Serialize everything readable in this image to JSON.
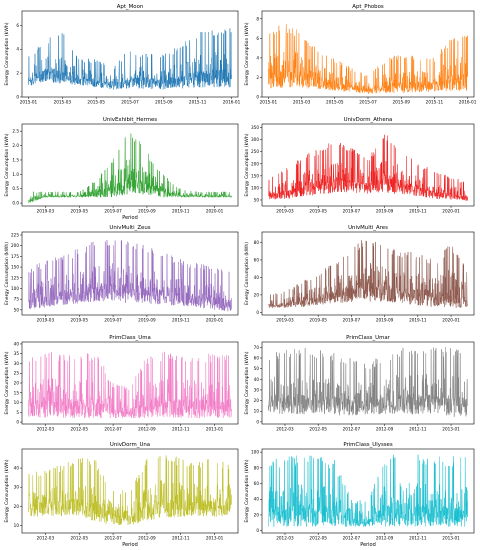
{
  "chart_data": [
    {
      "type": "line",
      "title": "Apt_Moon",
      "xlabel": "",
      "ylabel": "Energy Consumption (kWh)",
      "xtick_labels": [
        "2015-01",
        "2015-03",
        "2015-05",
        "2015-07",
        "2015-09",
        "2015-11",
        "2016-01"
      ],
      "ytick_labels": [
        "0",
        "2",
        "4",
        "6"
      ],
      "ylim": [
        0,
        7.2
      ],
      "color": "#1f77b4",
      "series": [
        {
          "x": [
            "2015-01",
            "2015-02",
            "2015-03",
            "2015-04",
            "2015-05",
            "2015-06",
            "2015-07",
            "2015-08",
            "2015-09",
            "2015-10",
            "2015-11",
            "2015-12",
            "2016-01"
          ],
          "low": [
            0.9,
            1.3,
            1.1,
            1.0,
            0.8,
            0.6,
            0.7,
            0.7,
            0.6,
            0.7,
            0.8,
            0.8,
            0.8
          ],
          "high": [
            3.5,
            4.8,
            5.6,
            3.2,
            3.2,
            2.5,
            4.2,
            3.6,
            3.6,
            4.4,
            5.4,
            5.8,
            5.8
          ]
        }
      ]
    },
    {
      "type": "line",
      "title": "Apt_Phobos",
      "xlabel": "",
      "ylabel": "Energy Consumption (kWh)",
      "xtick_labels": [
        "2015-01",
        "2015-03",
        "2015-05",
        "2015-07",
        "2015-09",
        "2015-11",
        "2016-01"
      ],
      "ytick_labels": [
        "0",
        "2",
        "4",
        "6",
        "8"
      ],
      "ylim": [
        0,
        8.8
      ],
      "color": "#ff7f0e",
      "series": [
        {
          "x": [
            "2015-01",
            "2015-02",
            "2015-03",
            "2015-04",
            "2015-05",
            "2015-06",
            "2015-07",
            "2015-08",
            "2015-09",
            "2015-10",
            "2015-11",
            "2015-12",
            "2016-01"
          ],
          "low": [
            0.8,
            0.9,
            0.9,
            0.8,
            0.6,
            0.5,
            0.3,
            0.4,
            0.4,
            0.5,
            0.5,
            0.6,
            0.6
          ],
          "high": [
            7.0,
            7.6,
            6.8,
            5.0,
            4.0,
            3.0,
            2.2,
            3.8,
            4.5,
            4.2,
            4.0,
            6.2,
            6.5
          ]
        }
      ]
    },
    {
      "type": "line",
      "title": "UnivExhibit_Hermes",
      "xlabel": "Period",
      "ylabel": "Energy Consumption (kWh)",
      "xtick_labels": [
        "2019-03",
        "2019-05",
        "2019-07",
        "2019-09",
        "2019-11",
        "2020-01"
      ],
      "ytick_labels": [
        "0.0",
        "0.5",
        "1.0",
        "1.5",
        "2.0",
        "2.5"
      ],
      "ylim": [
        -0.1,
        2.75
      ],
      "color": "#2ca02c",
      "series": [
        {
          "x": [
            "2019-02",
            "2019-03",
            "2019-04",
            "2019-05",
            "2019-06",
            "2019-07",
            "2019-08",
            "2019-09",
            "2019-10",
            "2019-11",
            "2019-12",
            "2020-01",
            "2020-02"
          ],
          "low": [
            0.0,
            0.2,
            0.2,
            0.2,
            0.2,
            0.2,
            0.3,
            0.3,
            0.2,
            0.2,
            0.2,
            0.2,
            0.2
          ],
          "high": [
            0.4,
            0.4,
            0.4,
            0.4,
            0.8,
            1.6,
            2.6,
            1.8,
            1.0,
            0.5,
            0.4,
            0.4,
            0.4
          ]
        }
      ]
    },
    {
      "type": "line",
      "title": "UnivDorm_Athena",
      "xlabel": "",
      "ylabel": "Energy Consumption (kWh)",
      "xtick_labels": [
        "2019-03",
        "2019-05",
        "2019-07",
        "2019-09",
        "2019-11",
        "2020-01"
      ],
      "ytick_labels": [
        "50",
        "100",
        "150",
        "200",
        "250",
        "300",
        "350"
      ],
      "ylim": [
        25,
        365
      ],
      "color": "#ee1c1c",
      "series": [
        {
          "x": [
            "2019-02",
            "2019-03",
            "2019-04",
            "2019-05",
            "2019-06",
            "2019-07",
            "2019-08",
            "2019-09",
            "2019-10",
            "2019-11",
            "2019-12",
            "2020-01",
            "2020-02"
          ],
          "low": [
            50,
            55,
            60,
            70,
            80,
            80,
            75,
            80,
            70,
            65,
            55,
            50,
            45
          ],
          "high": [
            140,
            180,
            230,
            260,
            300,
            270,
            220,
            340,
            280,
            210,
            170,
            150,
            120
          ]
        }
      ]
    },
    {
      "type": "line",
      "title": "UnivMulti_Zeus",
      "xlabel": "",
      "ylabel": "Energy Consumption (kWh)",
      "xtick_labels": [
        "2019-03",
        "2019-05",
        "2019-07",
        "2019-09",
        "2019-11",
        "2020-01"
      ],
      "ytick_labels": [
        "50",
        "75",
        "100",
        "125",
        "150",
        "175",
        "200",
        "225"
      ],
      "ylim": [
        38,
        232
      ],
      "color": "#9467bd",
      "series": [
        {
          "x": [
            "2019-02",
            "2019-03",
            "2019-04",
            "2019-05",
            "2019-06",
            "2019-07",
            "2019-08",
            "2019-09",
            "2019-10",
            "2019-11",
            "2019-12",
            "2020-01",
            "2020-02"
          ],
          "low": [
            50,
            55,
            60,
            65,
            70,
            70,
            65,
            65,
            60,
            60,
            55,
            50,
            45
          ],
          "high": [
            150,
            165,
            180,
            195,
            215,
            220,
            210,
            200,
            185,
            170,
            160,
            150,
            140
          ]
        }
      ]
    },
    {
      "type": "line",
      "title": "UnivMulti_Ares",
      "xlabel": "",
      "ylabel": "Energy Consumption (kWh)",
      "xtick_labels": [
        "2019-03",
        "2019-05",
        "2019-07",
        "2019-09",
        "2019-11",
        "2020-01"
      ],
      "ytick_labels": [
        "0",
        "20",
        "40",
        "60",
        "80"
      ],
      "ylim": [
        -3,
        92
      ],
      "color": "#8c564b",
      "series": [
        {
          "x": [
            "2019-02",
            "2019-03",
            "2019-04",
            "2019-05",
            "2019-06",
            "2019-07",
            "2019-08",
            "2019-09",
            "2019-10",
            "2019-11",
            "2019-12",
            "2020-01",
            "2020-02"
          ],
          "low": [
            5,
            5,
            6,
            8,
            10,
            12,
            12,
            12,
            10,
            8,
            6,
            5,
            4
          ],
          "high": [
            20,
            25,
            35,
            45,
            60,
            75,
            88,
            80,
            70,
            70,
            60,
            80,
            50
          ]
        }
      ]
    },
    {
      "type": "line",
      "title": "PrimClass_Uma",
      "xlabel": "",
      "ylabel": "Energy Consumption (kWh)",
      "xtick_labels": [
        "2012-03",
        "2012-05",
        "2012-07",
        "2012-09",
        "2012-11",
        "2013-01"
      ],
      "ytick_labels": [
        "0",
        "5",
        "10",
        "15",
        "20",
        "25",
        "30",
        "35",
        "40"
      ],
      "ylim": [
        -1,
        41
      ],
      "color": "#f27ac6",
      "series": [
        {
          "x": [
            "2012-02",
            "2012-03",
            "2012-04",
            "2012-05",
            "2012-06",
            "2012-07",
            "2012-08",
            "2012-09",
            "2012-10",
            "2012-11",
            "2012-12",
            "2013-01",
            "2013-02"
          ],
          "low": [
            2,
            2,
            2,
            2,
            2,
            2,
            2,
            2,
            2,
            2,
            2,
            2,
            2
          ],
          "high": [
            35,
            36,
            36,
            35,
            36,
            20,
            18,
            34,
            36,
            36,
            36,
            35,
            35
          ]
        }
      ]
    },
    {
      "type": "line",
      "title": "PrimClass_Umar",
      "xlabel": "",
      "ylabel": "Energy Consumption (kWh)",
      "xtick_labels": [
        "2012-03",
        "2012-05",
        "2012-07",
        "2012-09",
        "2012-11",
        "2013-01"
      ],
      "ytick_labels": [
        "0",
        "10",
        "20",
        "30",
        "40",
        "50",
        "60",
        "70"
      ],
      "ylim": [
        -2,
        75
      ],
      "color": "#7f7f7f",
      "series": [
        {
          "x": [
            "2012-02",
            "2012-03",
            "2012-04",
            "2012-05",
            "2012-06",
            "2012-07",
            "2012-08",
            "2012-09",
            "2012-10",
            "2012-11",
            "2012-12",
            "2013-01",
            "2013-02"
          ],
          "low": [
            8,
            7,
            7,
            7,
            6,
            6,
            6,
            7,
            7,
            7,
            7,
            5,
            3
          ],
          "high": [
            65,
            68,
            70,
            68,
            66,
            60,
            55,
            65,
            70,
            70,
            72,
            70,
            68
          ]
        }
      ]
    },
    {
      "type": "line",
      "title": "UnivDorm_Una",
      "xlabel": "Period",
      "ylabel": "Energy Consumption (kWh)",
      "xtick_labels": [
        "2012-03",
        "2012-05",
        "2012-07",
        "2012-09",
        "2012-11",
        "2013-01"
      ],
      "ytick_labels": [
        "10",
        "20",
        "30",
        "40"
      ],
      "ylim": [
        6,
        50
      ],
      "color": "#bcbd22",
      "series": [
        {
          "x": [
            "2012-02",
            "2012-03",
            "2012-04",
            "2012-05",
            "2012-06",
            "2012-07",
            "2012-08",
            "2012-09",
            "2012-10",
            "2012-11",
            "2012-12",
            "2013-01",
            "2013-02"
          ],
          "low": [
            14,
            15,
            15,
            15,
            12,
            10,
            10,
            12,
            14,
            14,
            15,
            14,
            15
          ],
          "high": [
            38,
            40,
            42,
            46,
            44,
            30,
            28,
            46,
            47,
            46,
            44,
            45,
            42
          ]
        }
      ]
    },
    {
      "type": "line",
      "title": "PrimClass_Ulysses",
      "xlabel": "Period",
      "ylabel": "Energy Consumption (kWh)",
      "xtick_labels": [
        "2012-03",
        "2012-05",
        "2012-07",
        "2012-09",
        "2012-11",
        "2013-01"
      ],
      "ytick_labels": [
        "0",
        "20",
        "40",
        "60",
        "80",
        "100"
      ],
      "ylim": [
        -3,
        104
      ],
      "color": "#17becf",
      "series": [
        {
          "x": [
            "2012-02",
            "2012-03",
            "2012-04",
            "2012-05",
            "2012-06",
            "2012-07",
            "2012-08",
            "2012-09",
            "2012-10",
            "2012-11",
            "2012-12",
            "2013-01",
            "2013-02"
          ],
          "low": [
            5,
            5,
            5,
            5,
            5,
            5,
            5,
            5,
            5,
            5,
            5,
            5,
            5
          ],
          "high": [
            90,
            95,
            96,
            95,
            90,
            40,
            38,
            96,
            100,
            98,
            96,
            95,
            95
          ]
        }
      ]
    }
  ]
}
